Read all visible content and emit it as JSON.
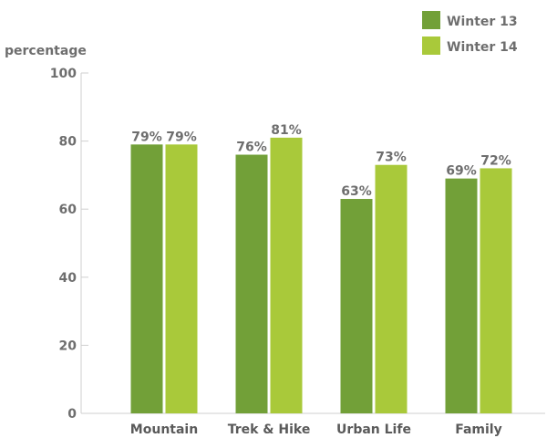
{
  "chart_data": {
    "type": "bar",
    "title": "",
    "xlabel": "",
    "ylabel": "percentage",
    "ylim": [
      0,
      100
    ],
    "yticks": [
      "0",
      "20",
      "40",
      "60",
      "80",
      "100"
    ],
    "categories": [
      "Mountain",
      "Trek & Hike",
      "Urban Life",
      "Family"
    ],
    "series": [
      {
        "name": "Winter 13",
        "color": "#72a038",
        "values": [
          79,
          76,
          63,
          69
        ],
        "labels": [
          "79%",
          "76%",
          "63%",
          "69%"
        ]
      },
      {
        "name": "Winter 14",
        "color": "#a9c93a",
        "values": [
          79,
          81,
          73,
          72
        ],
        "labels": [
          "79%",
          "81%",
          "73%",
          "72%"
        ]
      }
    ],
    "legend_position": "top-right",
    "grid": false
  }
}
